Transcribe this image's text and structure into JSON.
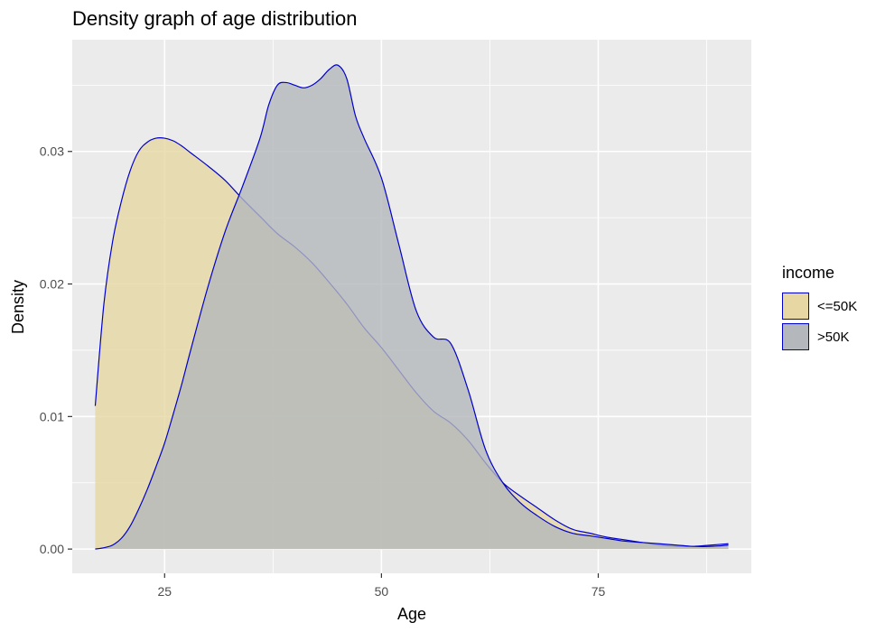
{
  "chart_data": {
    "type": "area",
    "title": "Density graph of age distribution",
    "xlabel": "Age",
    "ylabel": "Density",
    "xlim": [
      14.35,
      92.65
    ],
    "ylim": [
      -0.00183,
      0.03843
    ],
    "x_ticks": [
      25,
      50,
      75
    ],
    "y_ticks": [
      0.0,
      0.01,
      0.02,
      0.03
    ],
    "x_tick_labels": [
      "25",
      "50",
      "75"
    ],
    "y_tick_labels": [
      "0.00",
      "0.01",
      "0.02",
      "0.03"
    ],
    "grid": true,
    "legend": {
      "title": "income",
      "position": "right"
    },
    "series": [
      {
        "name": "<=50K",
        "fill": "#e6d7a3",
        "stroke": "#0000cc",
        "x": [
          17,
          18,
          19,
          20,
          21,
          22,
          23,
          24,
          25,
          26,
          27,
          28,
          30,
          32,
          34,
          36,
          38,
          40,
          42,
          44,
          46,
          48,
          50,
          52,
          54,
          56,
          58,
          60,
          62,
          64,
          66,
          68,
          70,
          72,
          74,
          76,
          78,
          80,
          82,
          84,
          86,
          88,
          90
        ],
        "values": [
          0.0108,
          0.0185,
          0.0232,
          0.0262,
          0.0285,
          0.03,
          0.0307,
          0.031,
          0.031,
          0.0308,
          0.0304,
          0.0299,
          0.0289,
          0.0278,
          0.0264,
          0.0251,
          0.0238,
          0.0228,
          0.0216,
          0.0201,
          0.0185,
          0.0167,
          0.0152,
          0.0135,
          0.0118,
          0.0104,
          0.0095,
          0.0082,
          0.0065,
          0.005,
          0.004,
          0.0031,
          0.0022,
          0.0015,
          0.0012,
          0.0009,
          0.0007,
          0.0005,
          0.0003,
          0.0002,
          0.0002,
          0.0003,
          0.0004
        ]
      },
      {
        "name": ">50K",
        "fill": "#b4b8bc",
        "stroke": "#0000cc",
        "x": [
          17,
          18,
          19,
          20,
          21,
          22,
          23,
          24,
          25,
          26,
          27,
          28,
          30,
          32,
          34,
          36,
          37,
          38,
          39,
          40,
          41,
          42,
          43,
          44,
          45,
          46,
          47,
          48,
          50,
          52,
          54,
          56,
          58,
          60,
          62,
          64,
          66,
          68,
          70,
          72,
          74,
          76,
          78,
          80,
          82,
          84,
          86,
          88,
          90
        ],
        "values": [
          0.0,
          0.0001,
          0.0003,
          0.0008,
          0.0017,
          0.003,
          0.0045,
          0.0062,
          0.008,
          0.0102,
          0.0125,
          0.015,
          0.0198,
          0.024,
          0.0274,
          0.031,
          0.0335,
          0.035,
          0.0352,
          0.035,
          0.0348,
          0.035,
          0.0355,
          0.0362,
          0.0365,
          0.0355,
          0.0327,
          0.031,
          0.028,
          0.023,
          0.018,
          0.016,
          0.0155,
          0.012,
          0.0075,
          0.005,
          0.0035,
          0.0025,
          0.0017,
          0.0012,
          0.001,
          0.0008,
          0.0006,
          0.0005,
          0.0004,
          0.0003,
          0.0002,
          0.0002,
          0.0003
        ]
      }
    ]
  }
}
